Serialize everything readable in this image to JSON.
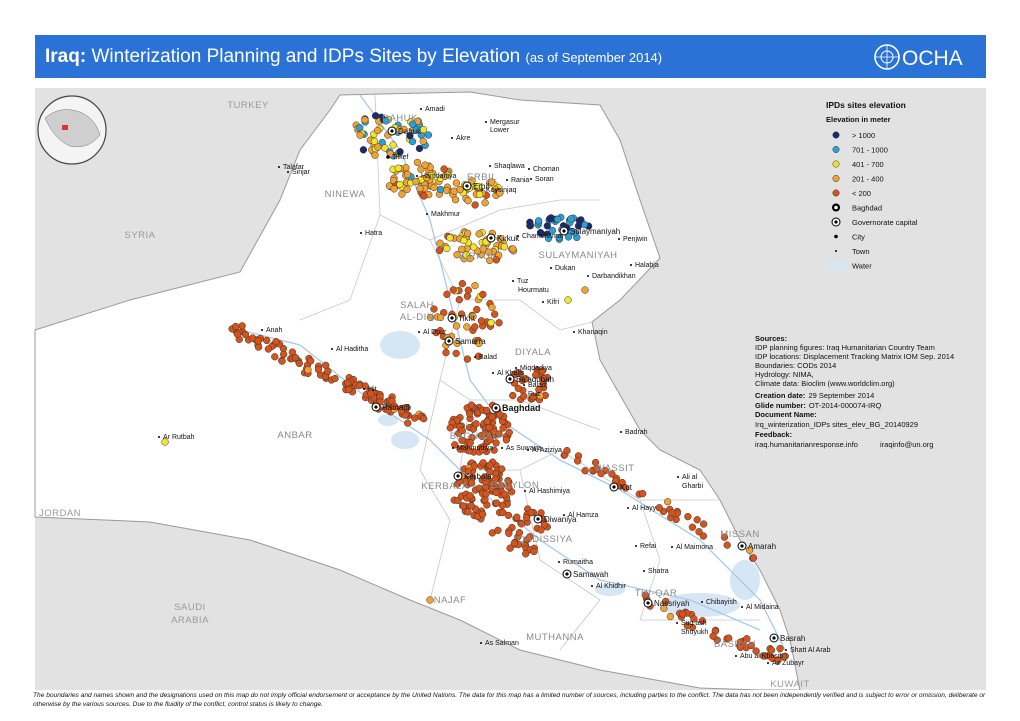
{
  "header": {
    "title_bold": "Iraq:",
    "title": "Winterization Planning and IDPs Sites by Elevation",
    "date": "(as of September  2014)",
    "logo": "OCHA"
  },
  "legend": {
    "title": "IPDs sites elevation",
    "subtitle": "Elevation in meter",
    "items": [
      "> 1000",
      "701 - 1000",
      "401 - 700",
      "201 - 400",
      "< 200",
      "Baghdad",
      "Governorate capital",
      "City",
      "Town",
      "Water"
    ]
  },
  "sources": {
    "title": "Sources:",
    "lines": [
      "IDP planning figures: Iraq Humanitarian Country Team",
      "IDP locations: Displacement Tracking Matrix IOM Sep. 2014",
      "Boundaries: CODs 2014",
      "Hydrology: NIMA,",
      "Climate data: Bioclim (www.worldclim.org)"
    ],
    "creation_label": "Creation date:",
    "creation": "29 September 2014",
    "glide_label": "Glide number:",
    "glide": "OT-2014-000074-IRQ",
    "docname_label": "Document Name:",
    "docname": "Irq_winterization_IDPs sites_elev_BG_20140929",
    "feedback_label": "Feedback:",
    "feedback_site": "iraq.humanitarianresponse.info",
    "feedback_email": "iraqinfo@un.org"
  },
  "countries": [
    "TURKEY",
    "SYRIA",
    "JORDAN",
    "SAUDI",
    "ARABIA",
    "KUWAIT"
  ],
  "governorates": [
    "DAHUK",
    "NINEWA",
    "ERBIL",
    "KIRKUK",
    "SULAYMANIYAH",
    "SALAH",
    "AL-DIN",
    "DIYALA",
    "ANBAR",
    "BAGHDAD",
    "WASSIT",
    "KERBALA",
    "BABYLON",
    "QADISSIYA",
    "MISSAN",
    "THI-QAR",
    "NAJAF",
    "MUTHANNA",
    "BASRAH"
  ],
  "places": [
    "Amadi",
    "Mergasur",
    "Lower",
    "Akre",
    "Choman",
    "Soran",
    "Dahuk",
    "Tilkef",
    "Talafar",
    "Sinjar",
    "Hamdaniya",
    "Shaqlawa",
    "Rania",
    "Erbil",
    "Koysinjaq",
    "Makhmur",
    "Hatra",
    "Kirkuk",
    "Chamchamal",
    "Sulaymaniyah",
    "Penjwin",
    "Halabja",
    "Dukan",
    "Darbandikhan",
    "Tuz",
    "Hourmatu",
    "Kifri",
    "Tikrit",
    "Anah",
    "Al Dour",
    "Samarra",
    "Khanaqin",
    "Al Haditha",
    "Balad",
    "Al Khalis",
    "Miqdadiya",
    "Hit",
    "Ba'aqubah",
    "Balad",
    "Ruz",
    "Ramadi",
    "Baghdad",
    "Badrah",
    "Mahmudiya",
    "As Suwaira",
    "Al Aziziya",
    "Ar Rutbah",
    "Kut",
    "Al Hashimiya",
    "Ali al",
    "Gharbi",
    "Al Hamza",
    "Al Hayy",
    "Diwaniya",
    "Kerbala",
    "Refai",
    "Al Maimona",
    "Amarah",
    "Rumaitha",
    "Samawah",
    "Al Khidhir",
    "Shatra",
    "Nassriyah",
    "Chibayish",
    "Suq ash",
    "Shuyukh",
    "Al Midaina",
    "Basrah",
    "Shatt Al Arab",
    "Abu al Khasib",
    "Az Zubayr",
    "As Salman"
  ],
  "disclaimer": "The boundaries and names shown and the designations used on this map do not imply official endorsement or acceptance by the United Nations. The data for this map has a limited number of sources, including parties to the conflict. The data has not been independently verified and is subject to error or omission, deliberate or otherwise by the various sources. Due to the fluidity of the conflict, control status is likely to change."
}
